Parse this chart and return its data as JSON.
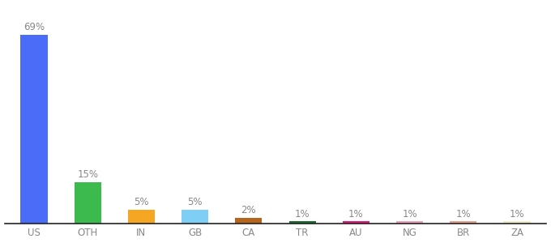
{
  "categories": [
    "US",
    "OTH",
    "IN",
    "GB",
    "CA",
    "TR",
    "AU",
    "NG",
    "BR",
    "ZA"
  ],
  "values": [
    69,
    15,
    5,
    5,
    2,
    1,
    1,
    1,
    1,
    1
  ],
  "bar_colors": [
    "#4a6cf7",
    "#3dba4e",
    "#f5a623",
    "#7ecef5",
    "#b5651d",
    "#1a6e2d",
    "#e8187a",
    "#f0a0b8",
    "#e8a090",
    "#f0ecc8"
  ],
  "labels": [
    "69%",
    "15%",
    "5%",
    "5%",
    "2%",
    "1%",
    "1%",
    "1%",
    "1%",
    "1%"
  ],
  "ylim": [
    0,
    80
  ],
  "background_color": "#ffffff",
  "label_fontsize": 8.5,
  "tick_fontsize": 8.5,
  "bar_width": 0.5,
  "label_color": "#888888",
  "tick_color": "#888888",
  "spine_color": "#222222"
}
